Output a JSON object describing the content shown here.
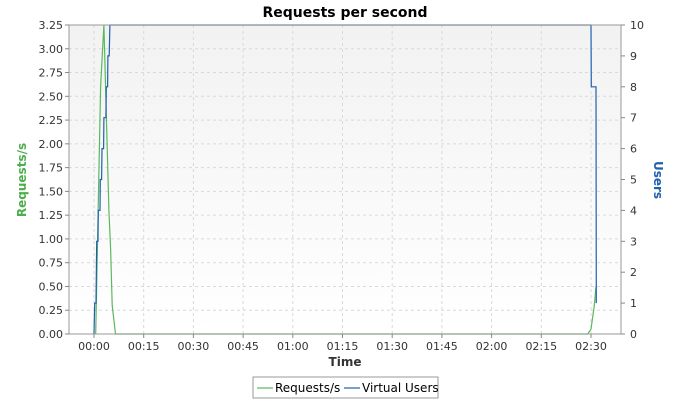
{
  "chart_data": {
    "type": "line",
    "title": "Requests per second",
    "xlabel": "Time",
    "ylabel": "Requests/s",
    "y2label": "Users",
    "x_ticks": [
      "00:00",
      "00:15",
      "00:30",
      "00:45",
      "01:00",
      "01:15",
      "01:30",
      "01:45",
      "02:00",
      "02:15",
      "02:30"
    ],
    "ylim": [
      0,
      3.25
    ],
    "y_ticks": [
      "0.00",
      "0.25",
      "0.50",
      "0.75",
      "1.00",
      "1.25",
      "1.50",
      "1.75",
      "2.00",
      "2.25",
      "2.50",
      "2.75",
      "3.00",
      "3.25"
    ],
    "y2lim": [
      0,
      10
    ],
    "y2_ticks": [
      "0",
      "1",
      "2",
      "3",
      "4",
      "5",
      "6",
      "7",
      "8",
      "9",
      "10"
    ],
    "grid": true,
    "legend_position": "bottom",
    "series": [
      {
        "name": "Requests/s",
        "axis": "left",
        "color": "#5cb85c",
        "points": [
          [
            0.5,
            0.0
          ],
          [
            2.0,
            2.6
          ],
          [
            3.0,
            3.25
          ],
          [
            4.5,
            1.3
          ],
          [
            5.0,
            0.9
          ],
          [
            5.5,
            0.3
          ],
          [
            6.5,
            0.0
          ],
          [
            149,
            0.0
          ],
          [
            150,
            0.05
          ],
          [
            151,
            0.3
          ],
          [
            151.5,
            0.5
          ]
        ]
      },
      {
        "name": "Virtual Users",
        "axis": "right",
        "color": "#1f5fb0",
        "points": [
          [
            0.0,
            0
          ],
          [
            0.2,
            1
          ],
          [
            0.6,
            1
          ],
          [
            0.8,
            3
          ],
          [
            1.2,
            3
          ],
          [
            1.3,
            4
          ],
          [
            1.8,
            4
          ],
          [
            1.9,
            5
          ],
          [
            2.3,
            5
          ],
          [
            2.4,
            6
          ],
          [
            2.9,
            6
          ],
          [
            3.0,
            7
          ],
          [
            3.6,
            7
          ],
          [
            3.7,
            8
          ],
          [
            4.1,
            8
          ],
          [
            4.2,
            9
          ],
          [
            4.6,
            9
          ],
          [
            4.8,
            10
          ],
          [
            150.0,
            10
          ],
          [
            150.1,
            8
          ],
          [
            151.5,
            8
          ],
          [
            151.6,
            1
          ]
        ]
      }
    ]
  }
}
